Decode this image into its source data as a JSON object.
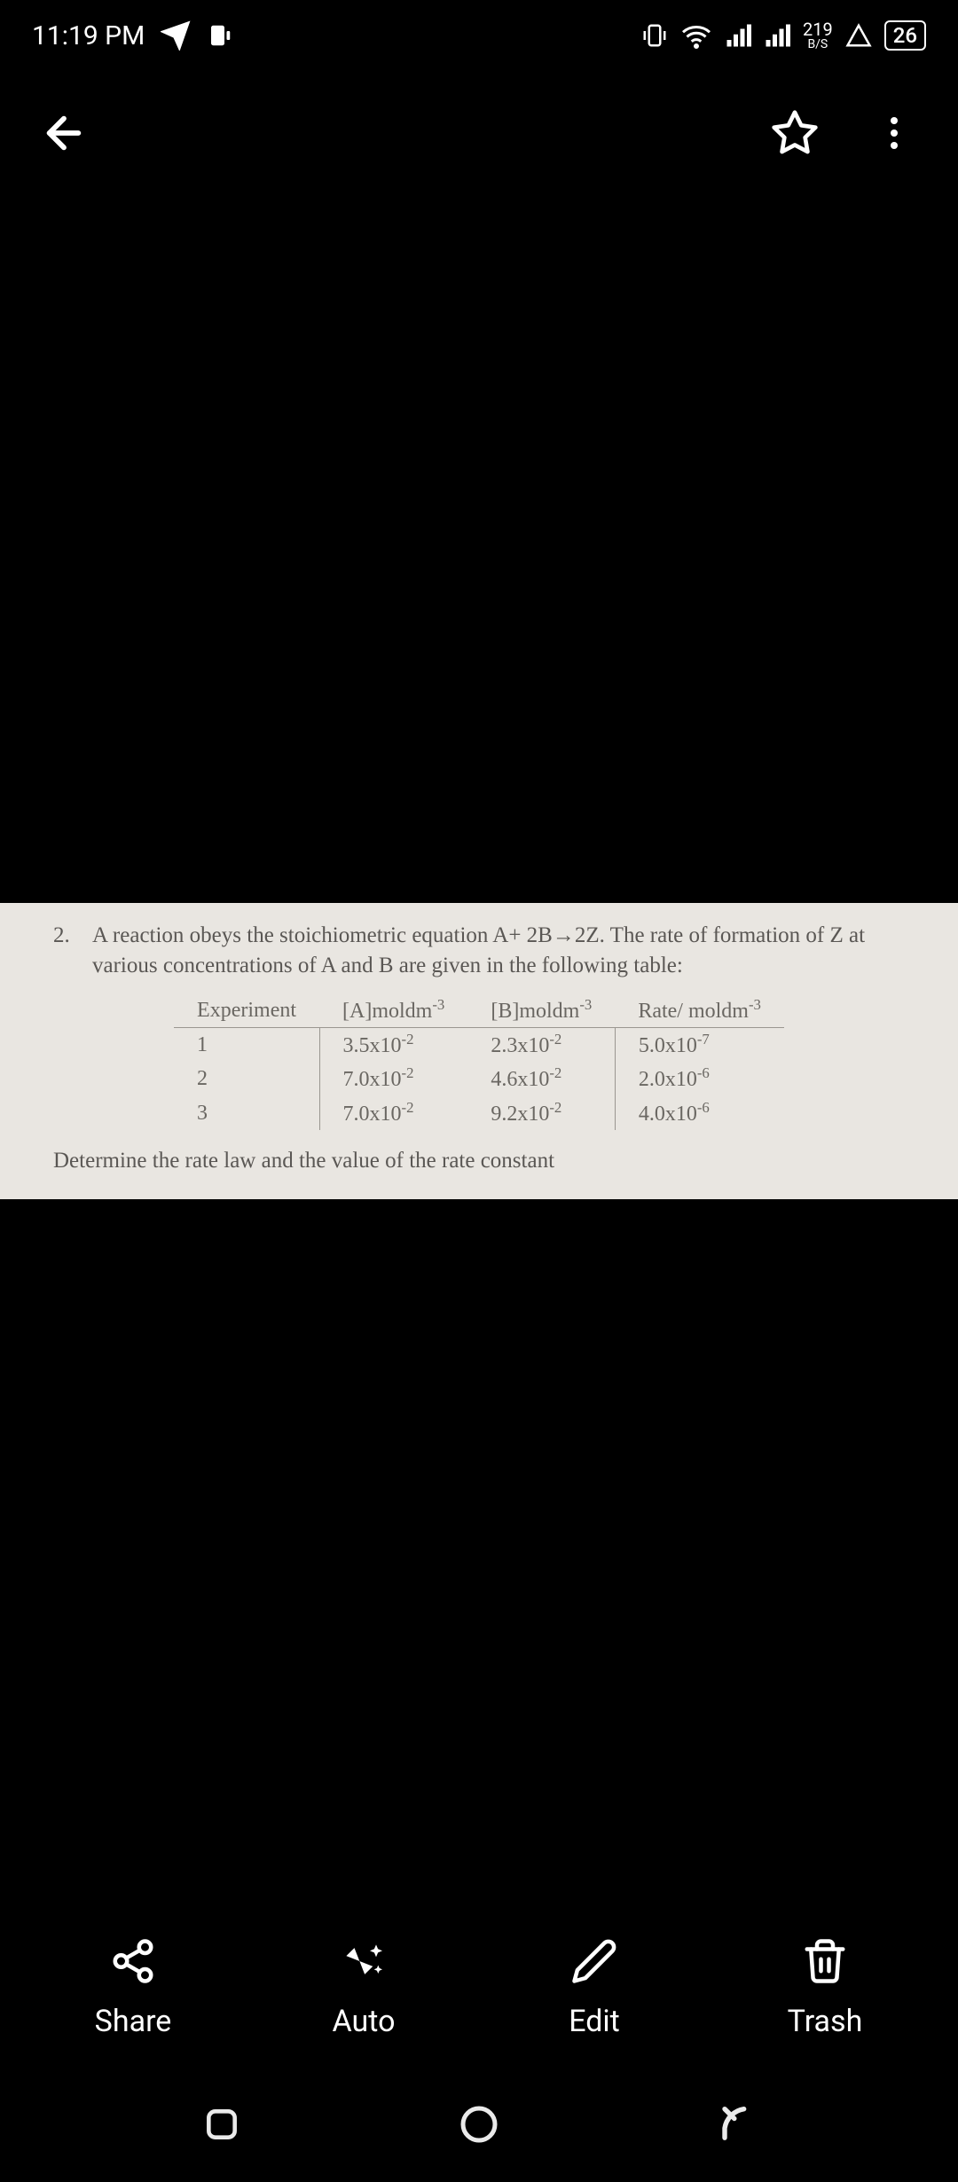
{
  "status_bar": {
    "time": "11:19 PM",
    "speed_top": "219",
    "speed_bottom": "B/S",
    "battery_text": "26"
  },
  "document": {
    "q_number": "2.",
    "q_line1": "A reaction obeys the stoichiometric equation A+ 2B→2Z. The rate of formation of Z at",
    "q_line2": "various concentrations of A and B are given in the following table:",
    "table": {
      "headers": {
        "c1": "Experiment",
        "c2": "[A]moldm",
        "c2_sup": "-3",
        "c3": "[B]moldm",
        "c3_sup": "-3",
        "c4": "Rate/ moldm",
        "c4_sup": "-3"
      },
      "rows": [
        {
          "exp": "1",
          "a": "3.5x10",
          "a_sup": "-2",
          "b": "2.3x10",
          "b_sup": "-2",
          "r": "5.0x10",
          "r_sup": "-7"
        },
        {
          "exp": "2",
          "a": "7.0x10",
          "a_sup": "-2",
          "b": "4.6x10",
          "b_sup": "-2",
          "r": "2.0x10",
          "r_sup": "-6"
        },
        {
          "exp": "3",
          "a": "7.0x10",
          "a_sup": "-2",
          "b": "9.2x10",
          "b_sup": "-2",
          "r": "4.0x10",
          "r_sup": "-6"
        }
      ]
    },
    "determine": "Determine the rate law and the value of the rate constant"
  },
  "actions": {
    "share": "Share",
    "auto": "Auto",
    "edit": "Edit",
    "trash": "Trash"
  }
}
